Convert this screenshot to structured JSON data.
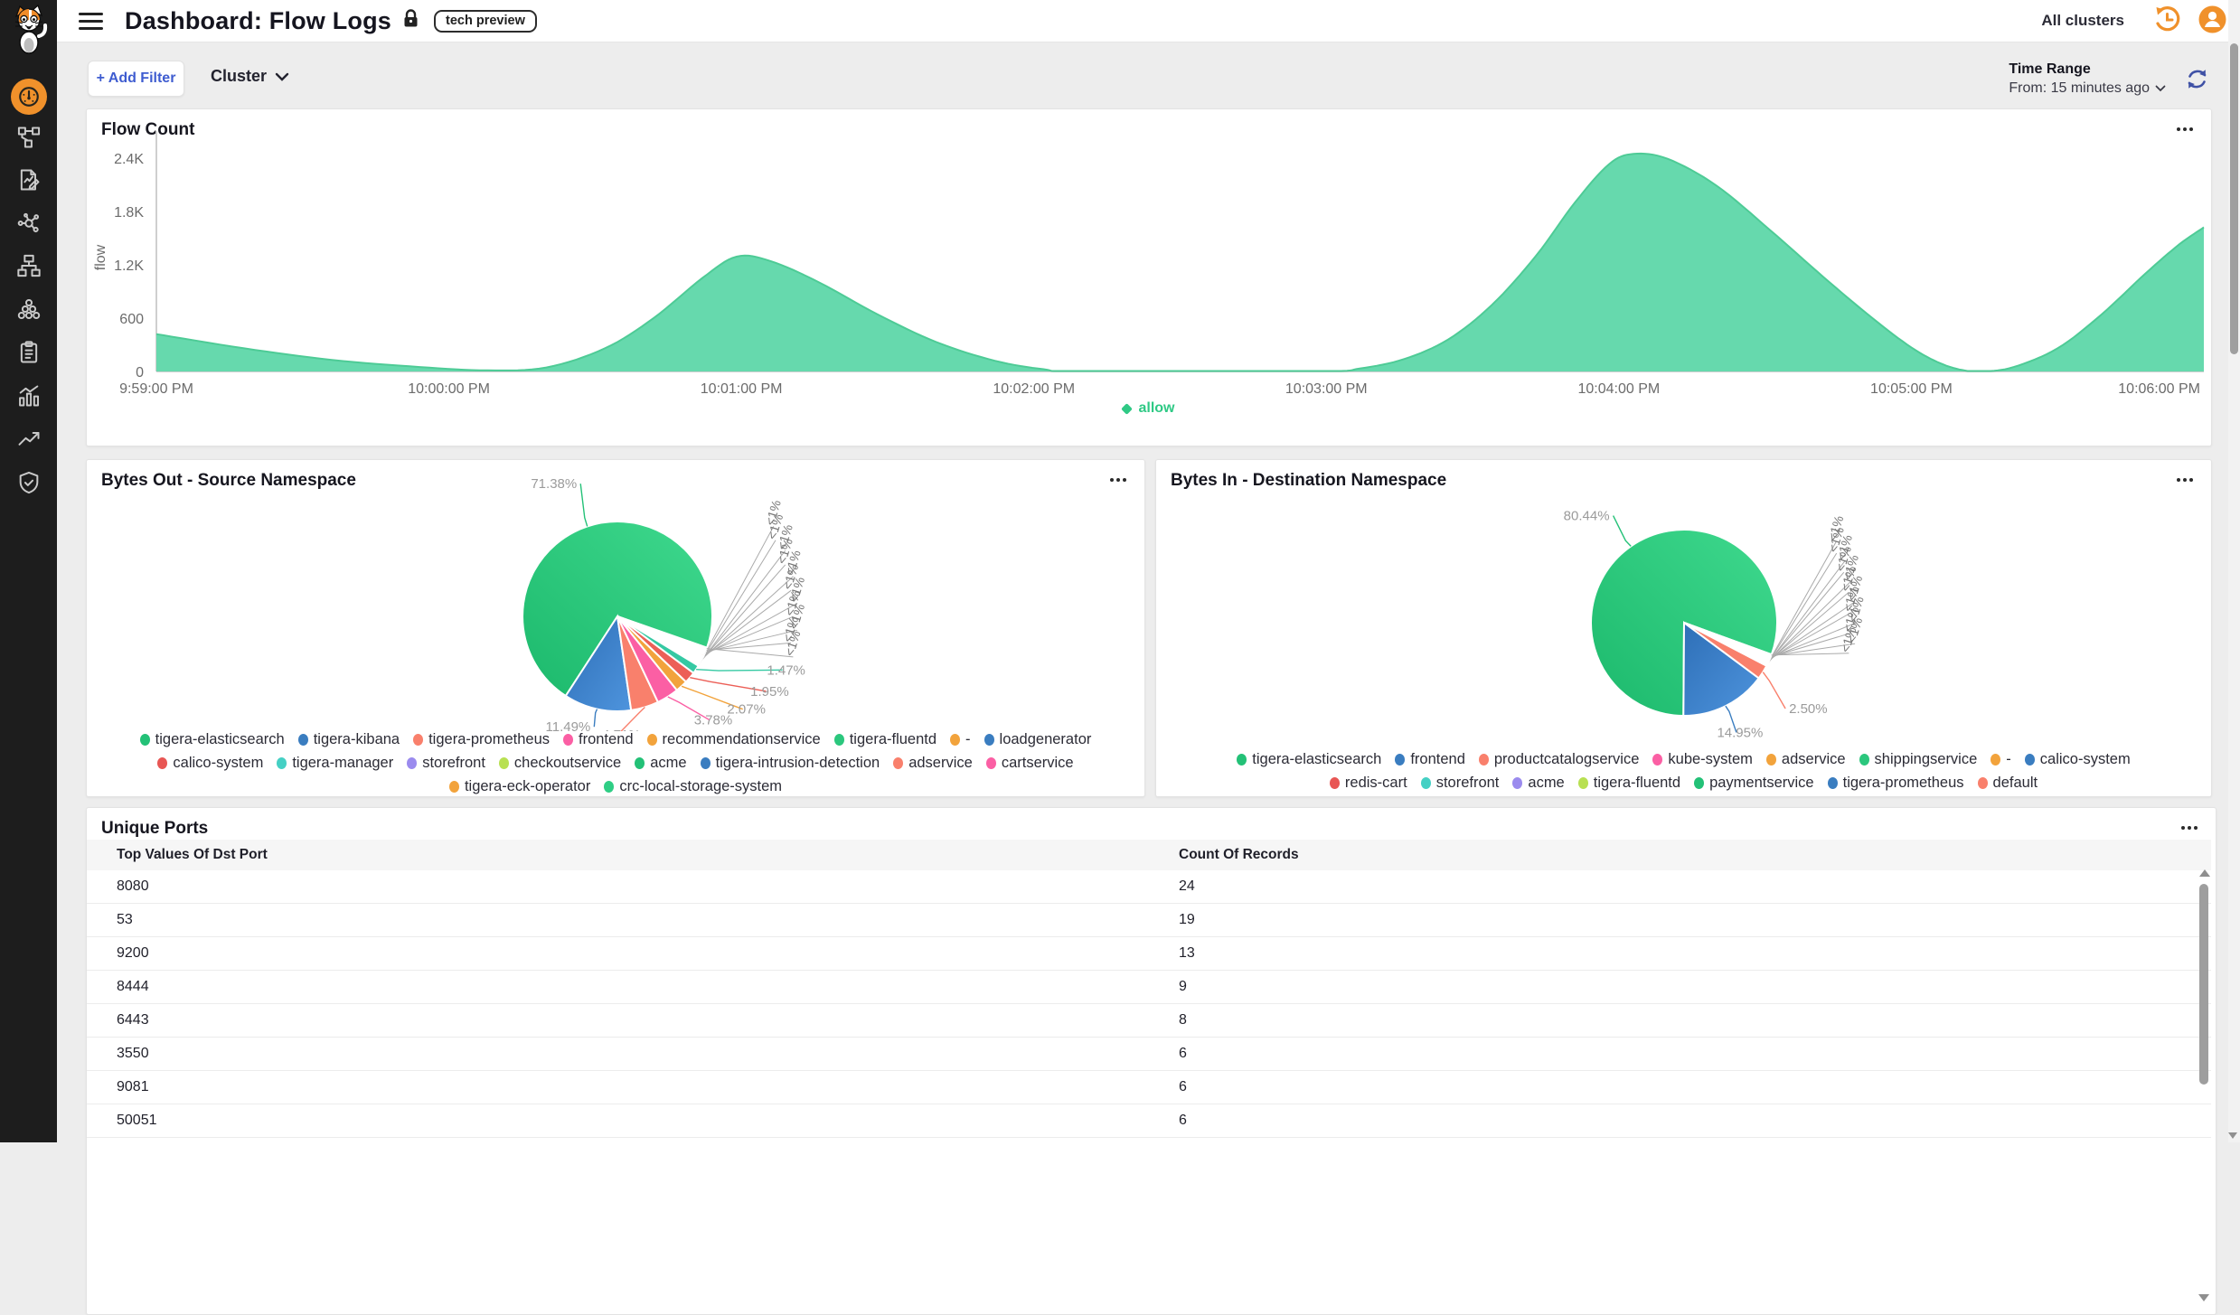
{
  "app": {
    "title": "Dashboard: Flow Logs",
    "badge": "tech preview",
    "cluster_scope": "All clusters",
    "accent_orange": "#f0912b",
    "link_blue": "#3e5cd0"
  },
  "sidebar": {
    "items": [
      {
        "icon": "gauge-dashboard-icon",
        "active": true
      },
      {
        "icon": "topology-icon",
        "active": false
      },
      {
        "icon": "flow-logs-icon",
        "active": false
      },
      {
        "icon": "service-graph-icon",
        "active": false
      },
      {
        "icon": "network-tree-icon",
        "active": false
      },
      {
        "icon": "endpoints-cluster-icon",
        "active": false
      },
      {
        "icon": "policies-clipboard-icon",
        "active": false
      },
      {
        "icon": "statistics-icon",
        "active": false
      },
      {
        "icon": "trends-arrow-icon",
        "active": false
      },
      {
        "icon": "security-shield-icon",
        "active": false
      }
    ]
  },
  "filters": {
    "add_filter_label": "+ Add Filter",
    "field_label": "Cluster",
    "time_range_label": "Time Range",
    "time_range_value": "From: 15 minutes ago"
  },
  "chart_data": [
    {
      "type": "area",
      "title": "Flow Count",
      "ylabel": "flow",
      "y_ticks": [
        "0",
        "600",
        "1.2K",
        "1.8K",
        "2.4K"
      ],
      "y_tick_values": [
        0,
        600,
        1200,
        1800,
        2400
      ],
      "ylim": [
        0,
        2560
      ],
      "x_ticks": [
        "9:59:00 PM",
        "10:00:00 PM",
        "10:01:00 PM",
        "10:02:00 PM",
        "10:03:00 PM",
        "10:04:00 PM",
        "10:05:00 PM",
        "10:06:00 PM"
      ],
      "x_range_seconds": [
        0,
        420
      ],
      "legend": [
        {
          "name": "allow",
          "color": "#2fc985"
        }
      ],
      "series": [
        {
          "name": "allow",
          "fill": "#66d9ad",
          "stroke": "#4ecb96",
          "points": [
            [
              0,
              420
            ],
            [
              18,
              260
            ],
            [
              36,
              130
            ],
            [
              54,
              50
            ],
            [
              68,
              12
            ],
            [
              80,
              45
            ],
            [
              92,
              260
            ],
            [
              102,
              600
            ],
            [
              112,
              1050
            ],
            [
              119,
              1290
            ],
            [
              126,
              1240
            ],
            [
              136,
              1000
            ],
            [
              148,
              640
            ],
            [
              160,
              330
            ],
            [
              172,
              120
            ],
            [
              182,
              25
            ],
            [
              190,
              0
            ],
            [
              238,
              0
            ],
            [
              247,
              35
            ],
            [
              256,
              140
            ],
            [
              265,
              360
            ],
            [
              274,
              750
            ],
            [
              283,
              1300
            ],
            [
              291,
              1900
            ],
            [
              298,
              2330
            ],
            [
              303,
              2445
            ],
            [
              310,
              2390
            ],
            [
              320,
              2090
            ],
            [
              331,
              1590
            ],
            [
              342,
              1060
            ],
            [
              352,
              600
            ],
            [
              360,
              270
            ],
            [
              366,
              90
            ],
            [
              371,
              10
            ],
            [
              375,
              0
            ],
            [
              381,
              50
            ],
            [
              390,
              260
            ],
            [
              399,
              640
            ],
            [
              408,
              1100
            ],
            [
              415,
              1430
            ],
            [
              420,
              1620
            ]
          ]
        }
      ]
    },
    {
      "type": "pie",
      "title": "Bytes Out - Source Namespace",
      "slices": [
        {
          "value_label": "71.38%",
          "pct": 71.38,
          "color": "#23c177"
        },
        {
          "value_label": "11.49%",
          "pct": 11.49,
          "color": "#3a7dc0"
        },
        {
          "value_label": "4.71%",
          "pct": 4.71,
          "color": "#f9806c"
        },
        {
          "value_label": "3.78%",
          "pct": 3.78,
          "color": "#fb5fa4"
        },
        {
          "value_label": "2.07%",
          "pct": 2.07,
          "color": "#f2a33c"
        },
        {
          "value_label": "1.95%",
          "pct": 1.95,
          "color": "#ec5f57"
        },
        {
          "value_label": "1.47%",
          "pct": 1.47,
          "color": "#35c9a3"
        },
        {
          "value_label": "<1%",
          "pct": 0.305,
          "color": "#9b8bee"
        },
        {
          "value_label": "<1%",
          "pct": 0.305,
          "color": "#b8e052"
        },
        {
          "value_label": "<1%",
          "pct": 0.305,
          "color": "#2bc77d"
        },
        {
          "value_label": "<1%",
          "pct": 0.305,
          "color": "#49ccd2"
        },
        {
          "value_label": "<1%",
          "pct": 0.305,
          "color": "#3a7dc0"
        },
        {
          "value_label": "<1%",
          "pct": 0.305,
          "color": "#fb5fa4"
        },
        {
          "value_label": "<1%",
          "pct": 0.305,
          "color": "#f2a33c"
        },
        {
          "value_label": "<1%",
          "pct": 0.305,
          "color": "#e85654"
        },
        {
          "value_label": "<1%",
          "pct": 0.305,
          "color": "#23c177"
        },
        {
          "value_label": "<1%",
          "pct": 0.305,
          "color": "#3a7dc0"
        },
        {
          "value_label": "<1%",
          "pct": 0.305,
          "color": "#f2a33c"
        }
      ],
      "legend": [
        {
          "name": "tigera-elasticsearch",
          "color": "#23c177"
        },
        {
          "name": "tigera-kibana",
          "color": "#3a7dc0"
        },
        {
          "name": "tigera-prometheus",
          "color": "#f9806c"
        },
        {
          "name": "frontend",
          "color": "#fb5fa4"
        },
        {
          "name": "recommendationservice",
          "color": "#f2a33c"
        },
        {
          "name": "tigera-fluentd",
          "color": "#2bc77d"
        },
        {
          "name": "-",
          "color": "#f2a33c"
        },
        {
          "name": "loadgenerator",
          "color": "#3a7dc0"
        },
        {
          "name": "calico-system",
          "color": "#e85654"
        },
        {
          "name": "tigera-manager",
          "color": "#45d0c4"
        },
        {
          "name": "storefront",
          "color": "#9b8bee"
        },
        {
          "name": "checkoutservice",
          "color": "#b8e052"
        },
        {
          "name": "acme",
          "color": "#23c177"
        },
        {
          "name": "tigera-intrusion-detection",
          "color": "#3a7dc0"
        },
        {
          "name": "adservice",
          "color": "#f9806c"
        },
        {
          "name": "cartservice",
          "color": "#fb5fa4"
        },
        {
          "name": "tigera-eck-operator",
          "color": "#f2a33c"
        },
        {
          "name": "crc-local-storage-system",
          "color": "#2fce85"
        }
      ]
    },
    {
      "type": "pie",
      "title": "Bytes In - Destination Namespace",
      "slices": [
        {
          "value_label": "80.44%",
          "pct": 80.44,
          "color": "#23c177"
        },
        {
          "value_label": "14.95%",
          "pct": 14.95,
          "color": "#3a7dc0"
        },
        {
          "value_label": "2.50%",
          "pct": 2.5,
          "color": "#f9806c"
        },
        {
          "value_label": "<1%",
          "pct": 0.176,
          "color": "#fb5fa4"
        },
        {
          "value_label": "<1%",
          "pct": 0.176,
          "color": "#f2a33c"
        },
        {
          "value_label": "<1%",
          "pct": 0.176,
          "color": "#2bc77d"
        },
        {
          "value_label": "<1%",
          "pct": 0.176,
          "color": "#f2a33c"
        },
        {
          "value_label": "<1%",
          "pct": 0.176,
          "color": "#3a7dc0"
        },
        {
          "value_label": "<1%",
          "pct": 0.176,
          "color": "#e85654"
        },
        {
          "value_label": "<1%",
          "pct": 0.176,
          "color": "#45d0c4"
        },
        {
          "value_label": "<1%",
          "pct": 0.176,
          "color": "#9b8bee"
        },
        {
          "value_label": "<1%",
          "pct": 0.176,
          "color": "#b8e052"
        },
        {
          "value_label": "<1%",
          "pct": 0.176,
          "color": "#23c177"
        },
        {
          "value_label": "<1%",
          "pct": 0.176,
          "color": "#3a7dc0"
        },
        {
          "value_label": "<1%",
          "pct": 0.176,
          "color": "#f9806c"
        }
      ],
      "legend": [
        {
          "name": "tigera-elasticsearch",
          "color": "#23c177"
        },
        {
          "name": "frontend",
          "color": "#3a7dc0"
        },
        {
          "name": "productcatalogservice",
          "color": "#f9806c"
        },
        {
          "name": "kube-system",
          "color": "#fb5fa4"
        },
        {
          "name": "adservice",
          "color": "#f2a33c"
        },
        {
          "name": "shippingservice",
          "color": "#2bc77d"
        },
        {
          "name": "-",
          "color": "#f2a33c"
        },
        {
          "name": "calico-system",
          "color": "#3a7dc0"
        },
        {
          "name": "redis-cart",
          "color": "#e85654"
        },
        {
          "name": "storefront",
          "color": "#45d0c4"
        },
        {
          "name": "acme",
          "color": "#9b8bee"
        },
        {
          "name": "tigera-fluentd",
          "color": "#b8e052"
        },
        {
          "name": "paymentservice",
          "color": "#23c177"
        },
        {
          "name": "tigera-prometheus",
          "color": "#3a7dc0"
        },
        {
          "name": "default",
          "color": "#f9806c"
        }
      ]
    },
    {
      "type": "table",
      "title": "Unique Ports",
      "columns": [
        "Top Values Of Dst Port",
        "Count Of Records"
      ],
      "rows": [
        [
          "8080",
          "24"
        ],
        [
          "53",
          "19"
        ],
        [
          "9200",
          "13"
        ],
        [
          "8444",
          "9"
        ],
        [
          "6443",
          "8"
        ],
        [
          "3550",
          "6"
        ],
        [
          "9081",
          "6"
        ],
        [
          "50051",
          "6"
        ]
      ]
    }
  ]
}
